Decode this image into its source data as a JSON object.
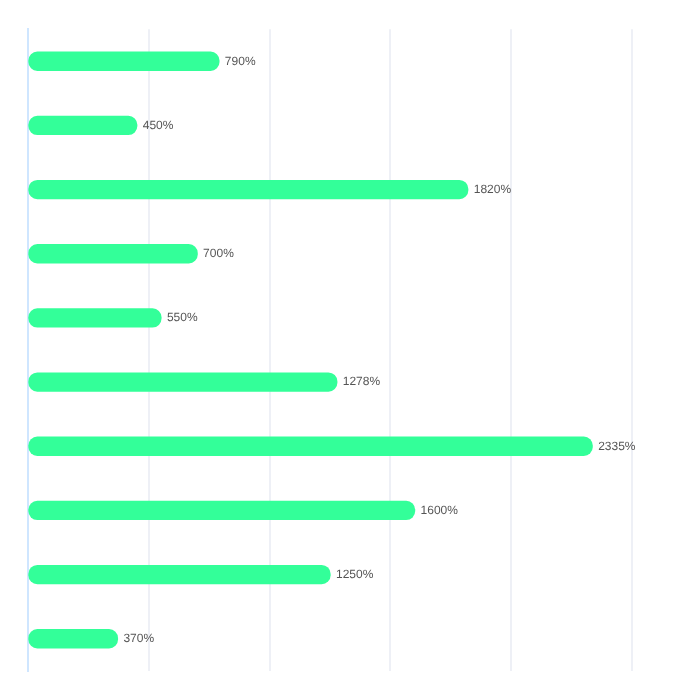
{
  "chart_data": {
    "type": "bar",
    "orientation": "horizontal",
    "categories": [
      null,
      null,
      null,
      null,
      null,
      null,
      null,
      null,
      null,
      null
    ],
    "values": [
      790,
      450,
      1820,
      700,
      550,
      1278,
      2335,
      1600,
      1250,
      370
    ],
    "value_labels": [
      "790%",
      "450%",
      "1820%",
      "700%",
      "550%",
      "1278%",
      "2335%",
      "1600%",
      "1250%",
      "370%"
    ],
    "color": "#33ff99",
    "xlim": [
      0,
      2500
    ],
    "xticks": [
      {
        "value": 0,
        "label": null
      },
      {
        "value": 500,
        "label": null
      },
      {
        "value": 1000,
        "label": null
      },
      {
        "value": 1500,
        "label": null
      },
      {
        "value": 2000,
        "label": null
      },
      {
        "value": 2500,
        "label": null
      }
    ],
    "grid": "x",
    "tick_labels": "y"
  }
}
